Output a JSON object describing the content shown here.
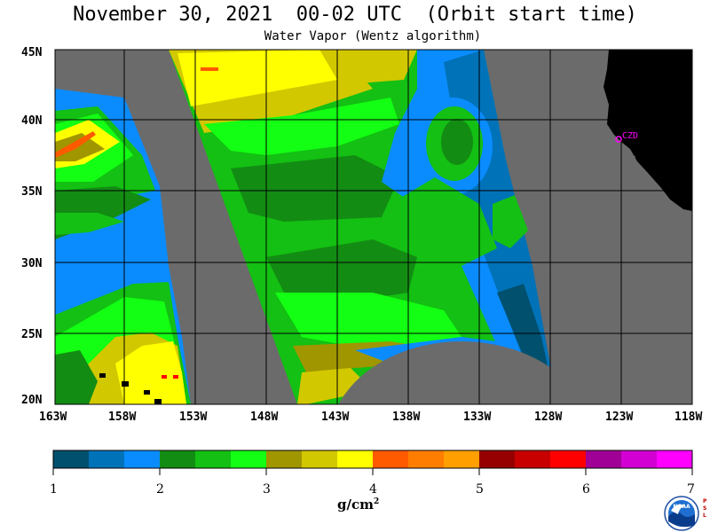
{
  "header": {
    "title": "November 30, 2021  00-02 UTC  (Orbit start time)",
    "subtitle": "Water Vapor (Wentz algorithm)"
  },
  "map": {
    "lat_labels": [
      "45N",
      "40N",
      "35N",
      "30N",
      "25N",
      "20N"
    ],
    "lon_labels": [
      "163W",
      "158W",
      "153W",
      "148W",
      "143W",
      "138W",
      "133W",
      "128W",
      "123W",
      "118W"
    ],
    "station_label": "CZD",
    "colors": {
      "no_data": "#6b6b6b",
      "land": "#000000",
      "grid": "#000000",
      "station": "#ff00ff"
    }
  },
  "colorbar": {
    "tick_labels": [
      "1",
      "2",
      "3",
      "4",
      "5",
      "6",
      "7"
    ],
    "units": "g/cm",
    "units_exp": "2",
    "colors": [
      "#00506e",
      "#0072b8",
      "#0a8cff",
      "#138c13",
      "#13c013",
      "#13ff13",
      "#a09600",
      "#d2c800",
      "#ffff00",
      "#ff5a00",
      "#ff7d00",
      "#ffa000",
      "#960000",
      "#c80000",
      "#ff0000",
      "#a00096",
      "#d200d2",
      "#ff00ff"
    ]
  },
  "logo": {
    "text": "NOAA",
    "side_text": "PSL"
  }
}
